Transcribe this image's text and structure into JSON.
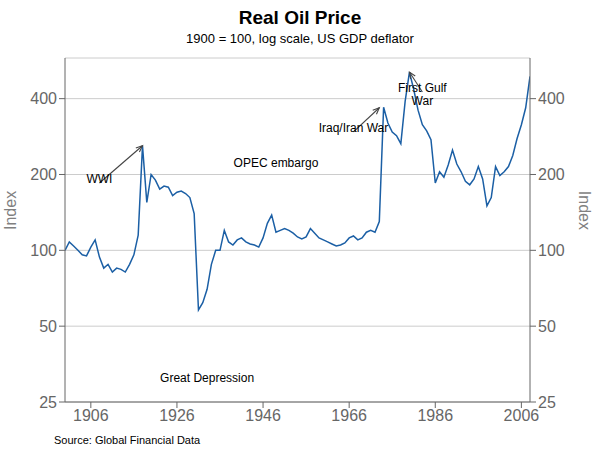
{
  "chart_data": {
    "type": "line",
    "title": "Real Oil Price",
    "subtitle": "1900 = 100, log scale, US GDP deflator",
    "y_label": "Index",
    "y2_label": "Index",
    "source": "Source: Global Financial Data",
    "color": "#1B5FA5",
    "log": "y",
    "grid": true,
    "xlim": [
      1900,
      2008
    ],
    "xticks": [
      1906,
      1926,
      1946,
      1966,
      1986,
      2006
    ],
    "ylim": [
      25,
      580
    ],
    "yticks": [
      25,
      50,
      100,
      200,
      400
    ],
    "y2lim": [
      25,
      580
    ],
    "y2ticks": [
      25,
      50,
      100,
      200,
      400
    ],
    "x": [
      1900,
      1901,
      1902,
      1903,
      1904,
      1905,
      1906,
      1907,
      1908,
      1909,
      1910,
      1911,
      1912,
      1913,
      1914,
      1915,
      1916,
      1917,
      1918,
      1919,
      1920,
      1921,
      1922,
      1923,
      1924,
      1925,
      1926,
      1927,
      1928,
      1929,
      1930,
      1931,
      1932,
      1933,
      1934,
      1935,
      1936,
      1937,
      1938,
      1939,
      1940,
      1941,
      1942,
      1943,
      1944,
      1945,
      1946,
      1947,
      1948,
      1949,
      1950,
      1951,
      1952,
      1953,
      1954,
      1955,
      1956,
      1957,
      1958,
      1959,
      1960,
      1961,
      1962,
      1963,
      1964,
      1965,
      1966,
      1967,
      1968,
      1969,
      1970,
      1971,
      1972,
      1973,
      1974,
      1975,
      1976,
      1977,
      1978,
      1979,
      1980,
      1981,
      1982,
      1983,
      1984,
      1985,
      1986,
      1987,
      1988,
      1989,
      1990,
      1991,
      1992,
      1993,
      1994,
      1995,
      1996,
      1997,
      1998,
      1999,
      2000,
      2001,
      2002,
      2003,
      2004,
      2005,
      2006,
      2007,
      2008
    ],
    "values": [
      100,
      108,
      104,
      100,
      96,
      95,
      103,
      110,
      94,
      85,
      88,
      82,
      85,
      84,
      82,
      88,
      96,
      115,
      260,
      155,
      200,
      190,
      175,
      180,
      178,
      165,
      170,
      172,
      168,
      162,
      140,
      58,
      62,
      70,
      88,
      100,
      100,
      120,
      108,
      105,
      110,
      112,
      108,
      106,
      105,
      103,
      112,
      128,
      138,
      118,
      120,
      122,
      120,
      117,
      113,
      111,
      113,
      122,
      117,
      112,
      110,
      108,
      106,
      104,
      105,
      107,
      112,
      114,
      110,
      112,
      118,
      120,
      118,
      130,
      370,
      320,
      295,
      285,
      265,
      390,
      510,
      435,
      360,
      315,
      298,
      275,
      185,
      205,
      195,
      218,
      250,
      220,
      205,
      188,
      182,
      192,
      215,
      192,
      150,
      162,
      215,
      198,
      205,
      215,
      238,
      278,
      315,
      368,
      490
    ],
    "annotations": [
      {
        "text": "WWI",
        "x": 1908,
        "y": 185,
        "arrow_x": 1918,
        "arrow_y": 260
      },
      {
        "text": "Great Depression",
        "x": 1933,
        "y": 30
      },
      {
        "text": "OPEC embargo",
        "x": 1949,
        "y": 215
      },
      {
        "text": "Iraq/Iran War",
        "x": 1967,
        "y": 295,
        "arrow_x": 1973,
        "arrow_y": 368
      },
      {
        "text": "First Gulf\nWar",
        "x": 1983,
        "y": 425,
        "arrow_x": 1980,
        "arrow_y": 510
      }
    ]
  }
}
